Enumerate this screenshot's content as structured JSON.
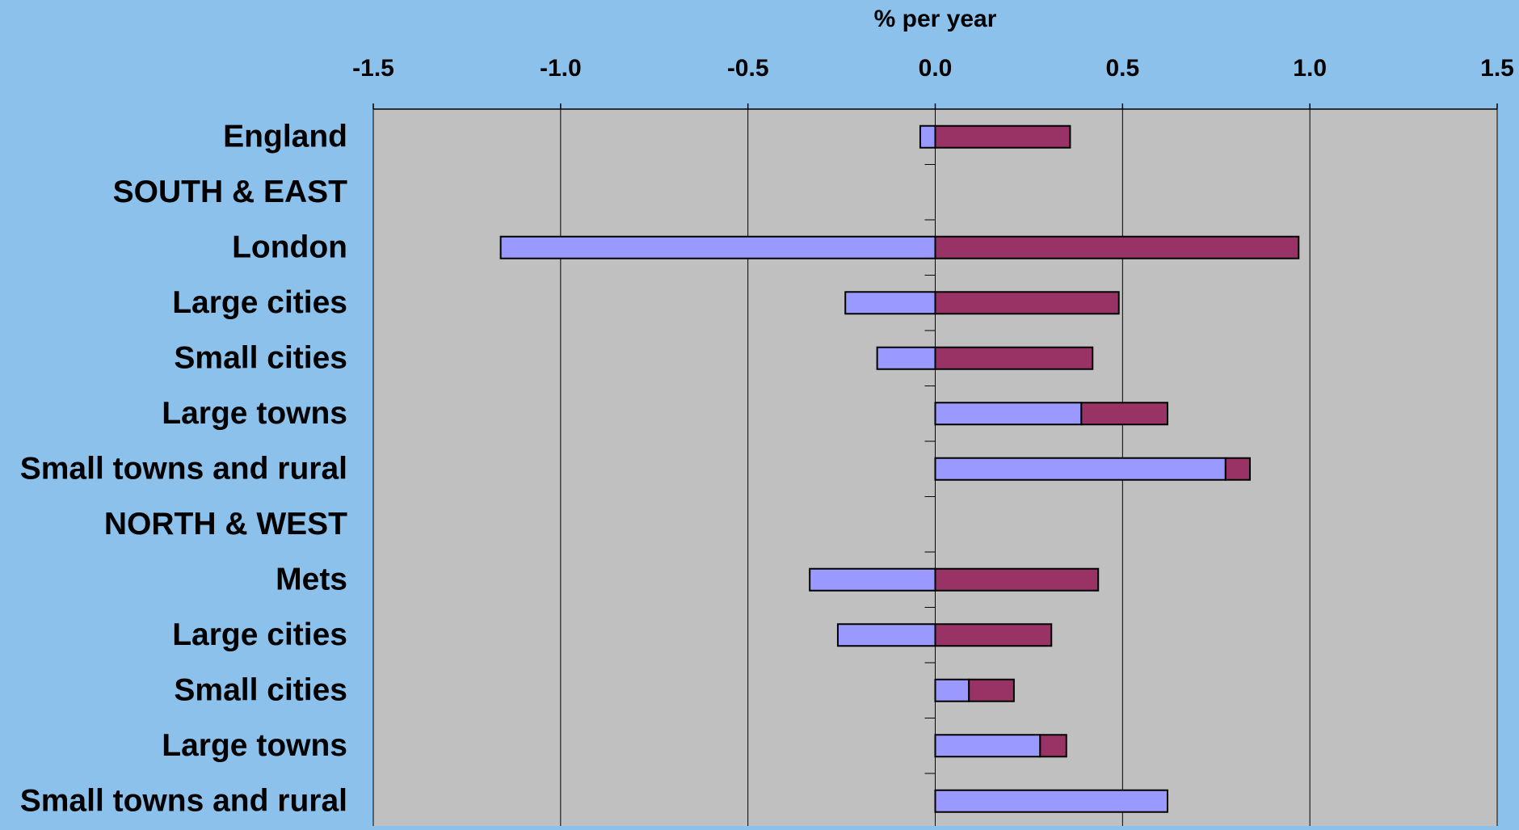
{
  "chart_data": {
    "type": "bar",
    "orientation": "horizontal",
    "stacking": "diverging",
    "title": "",
    "xlabel": "% per year",
    "ylabel": "",
    "xlim": [
      -1.5,
      1.5
    ],
    "xticks": [
      "-1.5",
      "-1.0",
      "-0.5",
      "0.0",
      "0.5",
      "1.0",
      "1.5"
    ],
    "xtick_values": [
      -1.5,
      -1.0,
      -0.5,
      0.0,
      0.5,
      1.0,
      1.5
    ],
    "grid": "vertical",
    "legend": "none",
    "categories": [
      "England",
      "SOUTH & EAST",
      "London",
      "Large cities",
      "Small cities",
      "Large towns",
      "Small towns and rural",
      "NORTH & WEST",
      "Mets",
      "Large cities",
      "Small cities",
      "Large towns",
      "Small towns and rural"
    ],
    "series": [
      {
        "values": [
          -0.04,
          null,
          -1.16,
          -0.24,
          -0.155,
          0.39,
          0.775,
          null,
          -0.335,
          -0.26,
          0.09,
          0.28,
          0.62
        ],
        "color": "#9999ff"
      },
      {
        "values": [
          0.36,
          null,
          0.97,
          0.49,
          0.42,
          0.23,
          0.065,
          null,
          0.435,
          0.31,
          0.12,
          0.07,
          0.0
        ],
        "color": "#993366"
      }
    ],
    "colors": {
      "background": "#8cc1eb",
      "plot_area": "#c0c0c0",
      "gridline": "#000000"
    }
  }
}
